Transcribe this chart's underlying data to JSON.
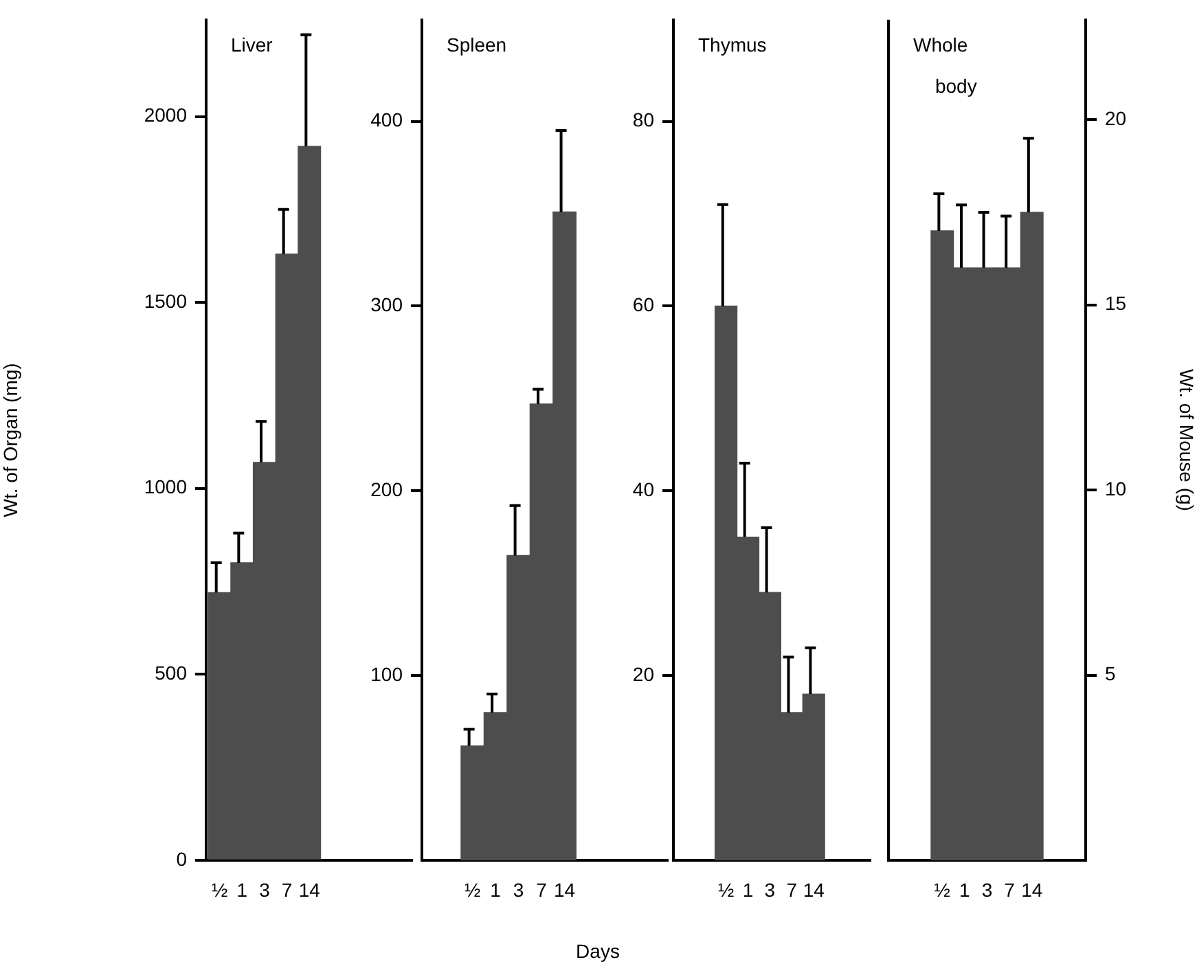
{
  "chart_data": [
    {
      "type": "bar",
      "title": "Liver",
      "ylabel": "Wt. of Organ (mg)",
      "categories": [
        "½",
        "1",
        "3",
        "7",
        "14"
      ],
      "values": [
        720,
        800,
        1070,
        1630,
        1920
      ],
      "errors": [
        [
          720,
          800
        ],
        [
          800,
          880
        ],
        [
          1070,
          1180
        ],
        [
          1630,
          1750
        ],
        [
          1920,
          2220
        ]
      ],
      "color": "#4d4d4d",
      "ylim": [
        0,
        2260
      ],
      "yticks": [
        0,
        500,
        1000,
        1500,
        2000
      ]
    },
    {
      "type": "bar",
      "title": "Spleen",
      "xlabel": "Days",
      "categories": [
        "½",
        "1",
        "3",
        "7",
        "14"
      ],
      "values": [
        62,
        80,
        165,
        247,
        351
      ],
      "errors": [
        [
          62,
          71
        ],
        [
          80,
          90
        ],
        [
          165,
          192
        ],
        [
          247,
          255
        ],
        [
          351,
          395
        ]
      ],
      "color": "#4d4d4d",
      "ylim": [
        0,
        455
      ],
      "yticks": [
        100,
        200,
        300,
        400
      ]
    },
    {
      "type": "bar",
      "title": "Thymus",
      "categories": [
        "½",
        "1",
        "3",
        "7",
        "14"
      ],
      "values": [
        60,
        35,
        29,
        16,
        18
      ],
      "errors": [
        [
          60,
          71
        ],
        [
          35,
          43
        ],
        [
          29,
          36
        ],
        [
          16,
          22
        ],
        [
          18,
          23
        ]
      ],
      "color": "#4d4d4d",
      "ylim": [
        0,
        91
      ],
      "yticks": [
        20,
        40,
        60,
        80
      ]
    },
    {
      "type": "bar",
      "title": "Whole body",
      "y2label": "Wt. of Mouse (g)",
      "categories": [
        "½",
        "1",
        "3",
        "7",
        "14"
      ],
      "series": [
        {
          "axis": "y2",
          "color": "#4d4d4d",
          "values": [
            17,
            16,
            16,
            16,
            17.5
          ],
          "errors": [
            [
              17,
              18
            ],
            [
              16,
              17.7
            ],
            [
              16,
              17.5
            ],
            [
              16,
              17.4
            ],
            [
              17.5,
              19.5
            ]
          ]
        }
      ],
      "y2lim": [
        0,
        22.7
      ],
      "y2ticks": [
        5,
        10,
        15,
        20
      ]
    }
  ]
}
